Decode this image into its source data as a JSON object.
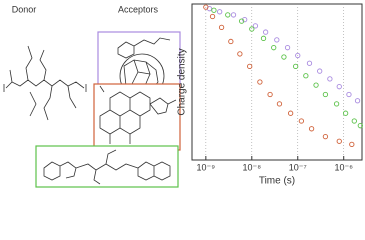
{
  "donor_label": "Donor",
  "acceptors_label": "Acceptors",
  "chart_data": {
    "type": "scatter",
    "xlabel": "Time (s)",
    "ylabel": "Charge density",
    "xscale": "log",
    "xlim": [
      5e-10,
      2.5e-06
    ],
    "ylim": [
      0,
      1
    ],
    "grid": true,
    "xticks": [
      {
        "value": 1e-09,
        "label": "10⁻⁹"
      },
      {
        "value": 1e-08,
        "label": "10⁻⁸"
      },
      {
        "value": 1e-07,
        "label": "10⁻⁷"
      },
      {
        "value": 1e-06,
        "label": "10⁻⁶"
      }
    ],
    "series": [
      {
        "color": "#a98be0",
        "x": [
          1.2e-09,
          2e-09,
          4e-09,
          7e-09,
          1.2e-08,
          2e-08,
          3.5e-08,
          6e-08,
          1e-07,
          1.8e-07,
          3e-07,
          5e-07,
          8e-07,
          1.3e-06,
          2e-06
        ],
        "values": [
          0.97,
          0.95,
          0.93,
          0.9,
          0.86,
          0.82,
          0.77,
          0.72,
          0.67,
          0.62,
          0.57,
          0.52,
          0.47,
          0.42,
          0.38
        ]
      },
      {
        "color": "#5cc24a",
        "x": [
          1.5e-09,
          3e-09,
          6e-09,
          1e-08,
          1.8e-08,
          3e-08,
          5e-08,
          9e-08,
          1.5e-07,
          2.5e-07,
          4e-07,
          7e-07,
          1.1e-06,
          1.7e-06,
          2.3e-06
        ],
        "values": [
          0.96,
          0.93,
          0.89,
          0.84,
          0.78,
          0.72,
          0.66,
          0.6,
          0.54,
          0.48,
          0.42,
          0.36,
          0.3,
          0.25,
          0.22
        ]
      },
      {
        "color": "#d0623a",
        "x": [
          1e-09,
          1.4e-09,
          2.2e-09,
          3.5e-09,
          5.5e-09,
          9e-09,
          1.5e-08,
          2.5e-08,
          4e-08,
          7e-08,
          1.2e-07,
          2e-07,
          4e-07,
          8e-07,
          1.5e-06
        ],
        "values": [
          0.98,
          0.92,
          0.85,
          0.76,
          0.68,
          0.6,
          0.5,
          0.42,
          0.36,
          0.3,
          0.25,
          0.2,
          0.15,
          0.12,
          0.1
        ]
      }
    ]
  }
}
